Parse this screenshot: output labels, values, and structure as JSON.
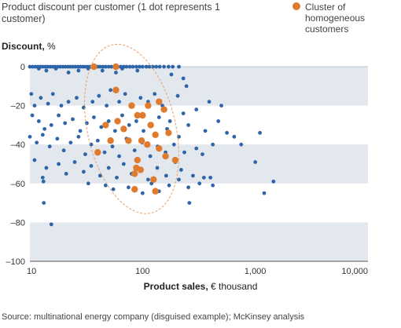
{
  "chart_data": {
    "type": "scatter",
    "title": "Product discount per customer (1 dot represents 1 customer)",
    "ylabel_bold": "Discount,",
    "ylabel_unit": " %",
    "xlabel_bold": "Product sales,",
    "xlabel_unit": " € thousand",
    "x_scale": "log",
    "xlim": [
      10,
      10000
    ],
    "ylim": [
      -100,
      0
    ],
    "x_ticks": [
      10,
      100,
      1000,
      10000
    ],
    "x_tick_labels": [
      "10",
      "100",
      "1,000",
      "10,000"
    ],
    "y_ticks": [
      0,
      -20,
      -40,
      -60,
      -80,
      -100
    ],
    "y_tick_labels": [
      "0",
      "–20",
      "–40",
      "–60",
      "–80",
      "–100"
    ],
    "band_color": "#e2e8ee",
    "series": [
      {
        "color": "#2e64a8",
        "points": [
          [
            10,
            0
          ],
          [
            10.6,
            0
          ],
          [
            11.2,
            0
          ],
          [
            11.8,
            0
          ],
          [
            12.4,
            0
          ],
          [
            13,
            0
          ],
          [
            13.7,
            0
          ],
          [
            14.4,
            0
          ],
          [
            15.2,
            0
          ],
          [
            16,
            0
          ],
          [
            16.8,
            0
          ],
          [
            17.7,
            0
          ],
          [
            18.6,
            0
          ],
          [
            19.6,
            0
          ],
          [
            20.6,
            0
          ],
          [
            21.7,
            0
          ],
          [
            22.8,
            0
          ],
          [
            24,
            0
          ],
          [
            25.3,
            0
          ],
          [
            26.6,
            0
          ],
          [
            28,
            0
          ],
          [
            29.5,
            0
          ],
          [
            31,
            0
          ],
          [
            32.7,
            0
          ],
          [
            34.4,
            0
          ],
          [
            36.2,
            0
          ],
          [
            38,
            0
          ],
          [
            40,
            0
          ],
          [
            42,
            0
          ],
          [
            44.5,
            0
          ],
          [
            47,
            0
          ],
          [
            50,
            0
          ],
          [
            53,
            0
          ],
          [
            56,
            0
          ],
          [
            60,
            0
          ],
          [
            64,
            0
          ],
          [
            68,
            0
          ],
          [
            72,
            0
          ],
          [
            77,
            0
          ],
          [
            82,
            0
          ],
          [
            88,
            0
          ],
          [
            94,
            0
          ],
          [
            100,
            0
          ],
          [
            108,
            0
          ],
          [
            115,
            0
          ],
          [
            123,
            0
          ],
          [
            132,
            0
          ],
          [
            142,
            0
          ],
          [
            155,
            0
          ],
          [
            170,
            0
          ],
          [
            185,
            0
          ],
          [
            210,
            0
          ],
          [
            12,
            -1
          ],
          [
            14,
            -2
          ],
          [
            17,
            -1
          ],
          [
            22,
            -3
          ],
          [
            27,
            -2
          ],
          [
            33,
            -1
          ],
          [
            44,
            -2
          ],
          [
            58,
            -3
          ],
          [
            66,
            -1
          ],
          [
            90,
            -2
          ],
          [
            10.3,
            -14
          ],
          [
            11,
            -20
          ],
          [
            12.5,
            -16
          ],
          [
            14.5,
            -19
          ],
          [
            16,
            -14
          ],
          [
            19,
            -20
          ],
          [
            22,
            -18
          ],
          [
            26,
            -16
          ],
          [
            30,
            -21
          ],
          [
            36,
            -18
          ],
          [
            41,
            -15
          ],
          [
            48,
            -20
          ],
          [
            52,
            -12
          ],
          [
            62,
            -18
          ],
          [
            70,
            -14
          ],
          [
            82,
            -20
          ],
          [
            96,
            -16
          ],
          [
            112,
            -18
          ],
          [
            128,
            -14
          ],
          [
            150,
            -20
          ],
          [
            10.5,
            -25
          ],
          [
            12,
            -28
          ],
          [
            13.5,
            -32
          ],
          [
            15.5,
            -30
          ],
          [
            18,
            -25
          ],
          [
            20.5,
            -29
          ],
          [
            24,
            -27
          ],
          [
            28,
            -33
          ],
          [
            32,
            -29
          ],
          [
            37,
            -26
          ],
          [
            43,
            -31
          ],
          [
            50,
            -28
          ],
          [
            57,
            -33
          ],
          [
            66,
            -25
          ],
          [
            76,
            -30
          ],
          [
            88,
            -28
          ],
          [
            102,
            -33
          ],
          [
            118,
            -30
          ],
          [
            140,
            -26
          ],
          [
            165,
            -32
          ],
          [
            10,
            -36
          ],
          [
            11.5,
            -39
          ],
          [
            13,
            -35
          ],
          [
            15,
            -41
          ],
          [
            17.5,
            -37
          ],
          [
            20,
            -43
          ],
          [
            23,
            -39
          ],
          [
            27,
            -36
          ],
          [
            31,
            -45
          ],
          [
            35,
            -40
          ],
          [
            40,
            -38
          ],
          [
            46,
            -44
          ],
          [
            54,
            -41
          ],
          [
            62,
            -46
          ],
          [
            72,
            -37
          ],
          [
            85,
            -43
          ],
          [
            99,
            -39
          ],
          [
            117,
            -46
          ],
          [
            136,
            -41
          ],
          [
            160,
            -44
          ],
          [
            11,
            -48
          ],
          [
            14,
            -52
          ],
          [
            18,
            -50
          ],
          [
            21,
            -55
          ],
          [
            25,
            -49
          ],
          [
            30,
            -54
          ],
          [
            35,
            -51
          ],
          [
            42,
            -56
          ],
          [
            50,
            -52
          ],
          [
            59,
            -57
          ],
          [
            68,
            -50
          ],
          [
            80,
            -55
          ],
          [
            95,
            -53
          ],
          [
            112,
            -58
          ],
          [
            135,
            -52
          ],
          [
            162,
            -56
          ],
          [
            195,
            -49
          ],
          [
            220,
            -53
          ],
          [
            13,
            -57
          ],
          [
            13.2,
            -59
          ],
          [
            33,
            -60
          ],
          [
            47,
            -61
          ],
          [
            55,
            -63
          ],
          [
            75,
            -62
          ],
          [
            100,
            -65
          ],
          [
            120,
            -60
          ],
          [
            140,
            -64
          ],
          [
            172,
            -61
          ],
          [
            210,
            -58
          ],
          [
            255,
            -62
          ],
          [
            280,
            -56
          ],
          [
            320,
            -60
          ],
          [
            350,
            -57
          ],
          [
            400,
            -57
          ],
          [
            420,
            -61
          ],
          [
            13.3,
            -70
          ],
          [
            15.5,
            -81
          ],
          [
            260,
            -70
          ],
          [
            1200,
            -65
          ],
          [
            1450,
            -59
          ],
          [
            1000,
            -49
          ],
          [
            300,
            -42
          ],
          [
            340,
            -45
          ],
          [
            420,
            -40
          ],
          [
            560,
            -34
          ],
          [
            650,
            -36
          ],
          [
            750,
            -40
          ],
          [
            1100,
            -34
          ],
          [
            470,
            -28
          ],
          [
            500,
            -20
          ],
          [
            390,
            -18
          ],
          [
            230,
            -24
          ],
          [
            255,
            -30
          ],
          [
            300,
            -22
          ],
          [
            360,
            -33
          ],
          [
            210,
            -36
          ],
          [
            235,
            -44
          ],
          [
            190,
            -40
          ],
          [
            175,
            -28
          ],
          [
            205,
            -15
          ],
          [
            245,
            -10
          ],
          [
            230,
            -6
          ],
          [
            180,
            -4
          ]
        ]
      },
      {
        "name": "Cluster of homogeneous customers",
        "color": "#e07b2e",
        "points": [
          [
            37,
            0
          ],
          [
            58,
            0
          ],
          [
            58,
            -12
          ],
          [
            80,
            -20
          ],
          [
            112,
            -20
          ],
          [
            140,
            -18
          ],
          [
            100,
            -25
          ],
          [
            155,
            -22
          ],
          [
            60,
            -28
          ],
          [
            47,
            -30
          ],
          [
            90,
            -25
          ],
          [
            68,
            -32
          ],
          [
            52,
            -38
          ],
          [
            40,
            -44
          ],
          [
            75,
            -38
          ],
          [
            118,
            -30
          ],
          [
            98,
            -38
          ],
          [
            110,
            -40
          ],
          [
            130,
            -35
          ],
          [
            170,
            -34
          ],
          [
            140,
            -42
          ],
          [
            90,
            -48
          ],
          [
            195,
            -48
          ],
          [
            160,
            -46
          ],
          [
            88,
            -52
          ],
          [
            96,
            -53
          ],
          [
            85,
            -55
          ],
          [
            125,
            -58
          ],
          [
            130,
            -64
          ],
          [
            85,
            -63
          ]
        ]
      }
    ],
    "annotation": "ellipse"
  },
  "legend": {
    "label": "Cluster of homogeneous customers",
    "color": "#e07b2e"
  },
  "source": "Source: multinational energy company (disguised example); McKinsey analysis"
}
